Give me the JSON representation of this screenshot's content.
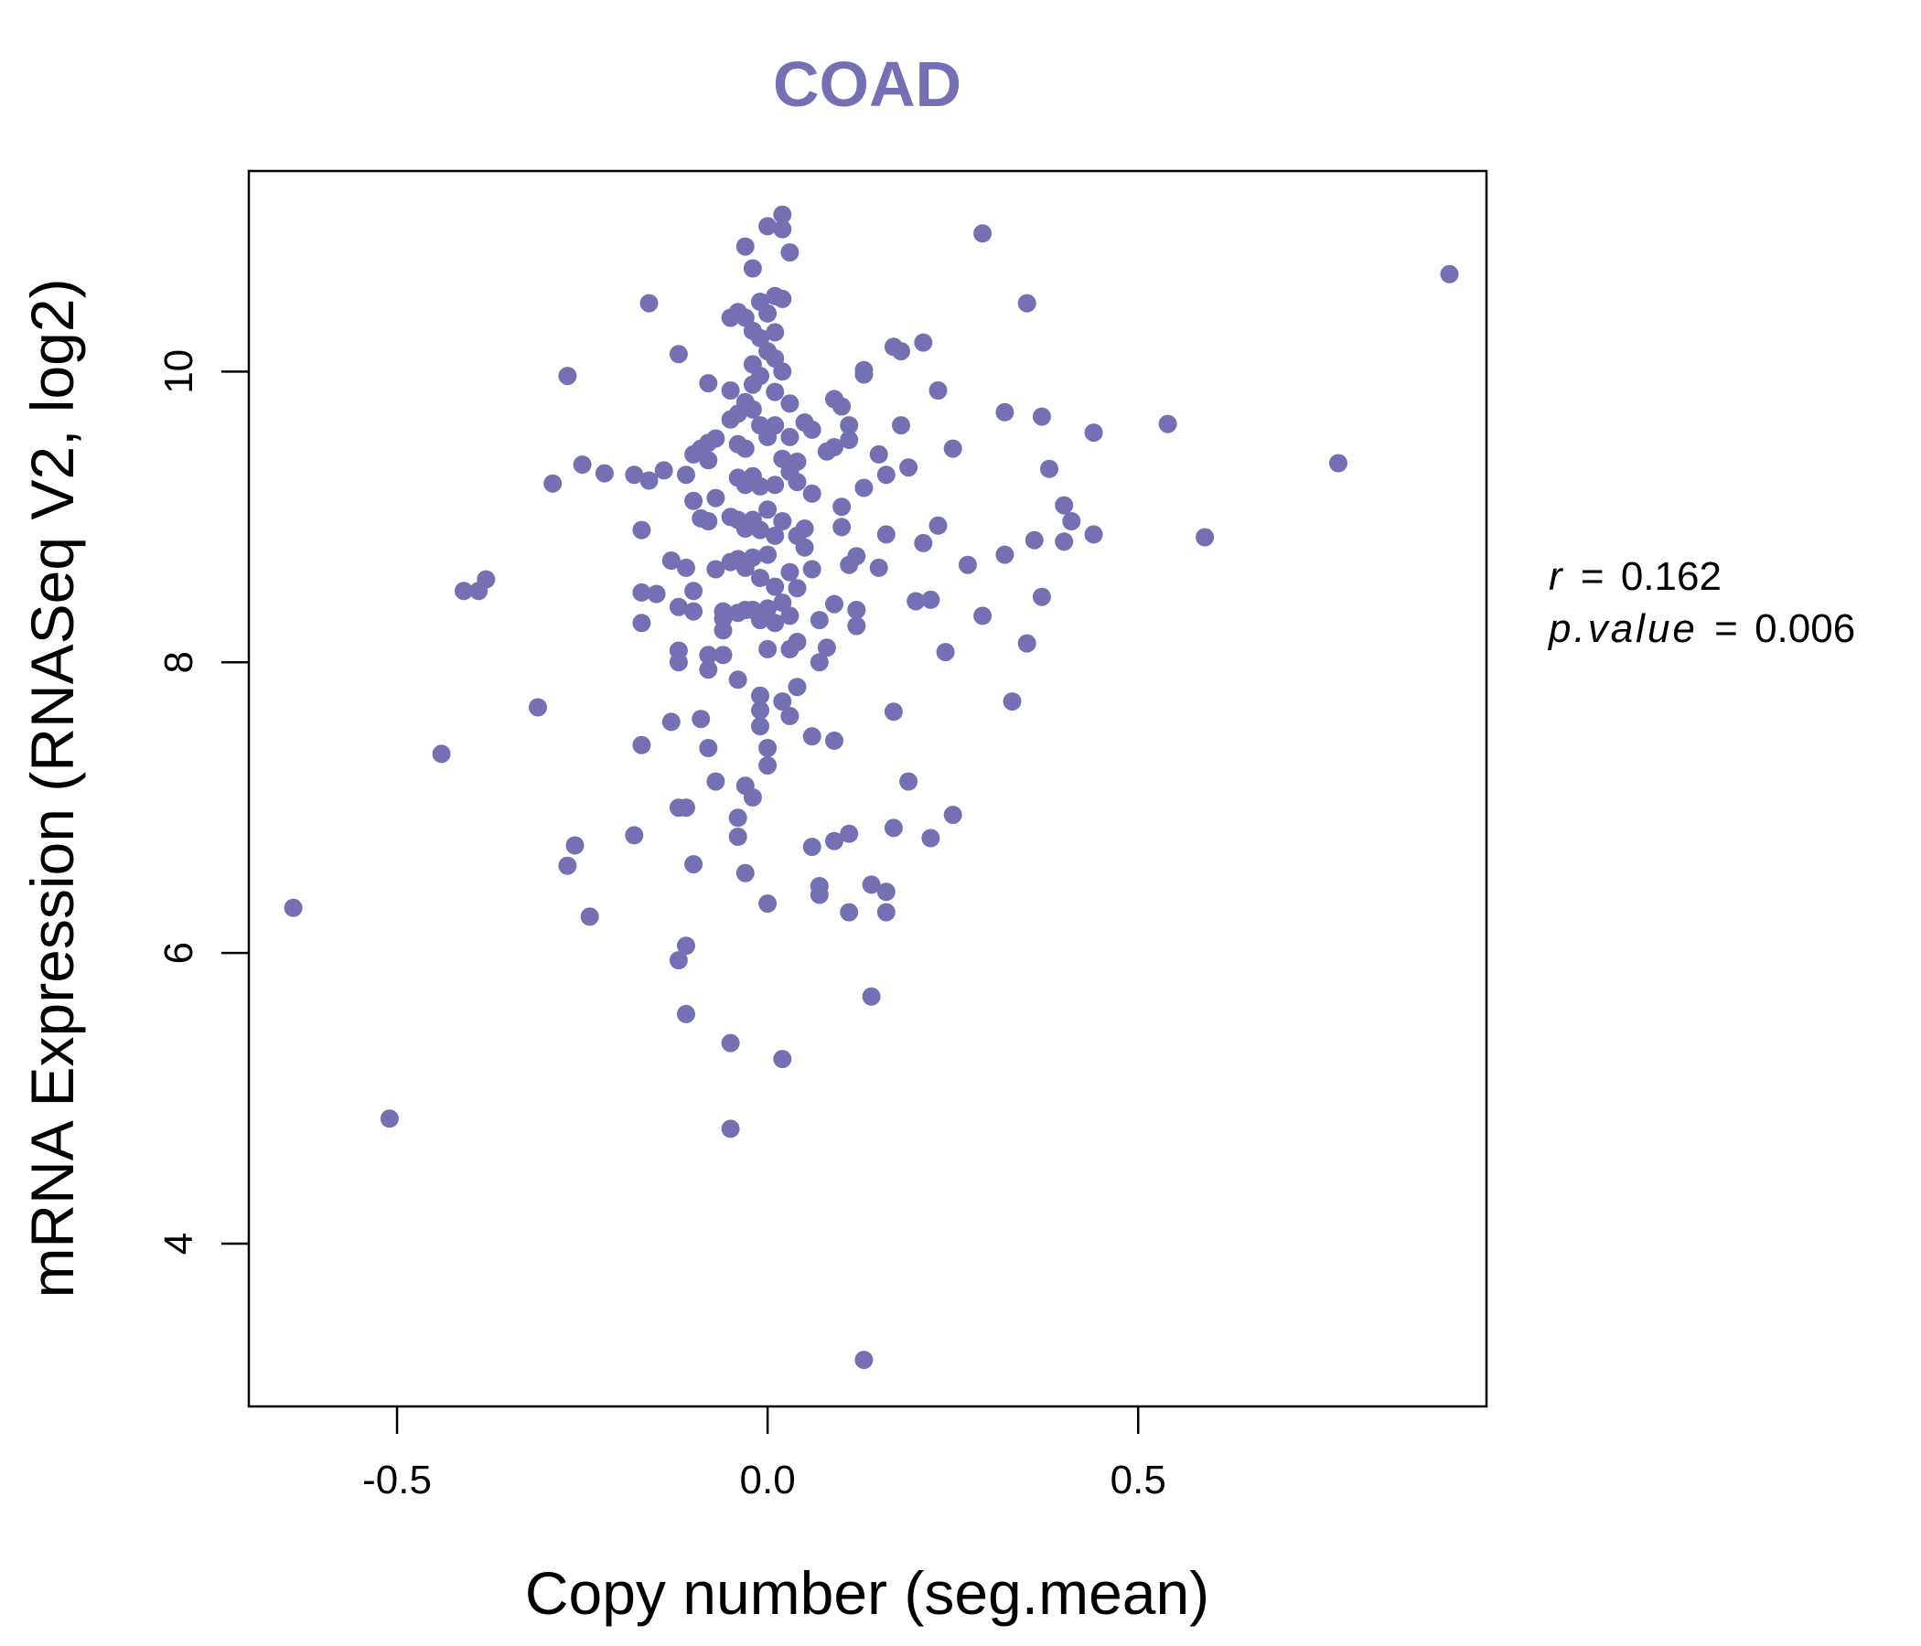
{
  "chart_data": {
    "type": "scatter",
    "title": "COAD",
    "xlabel": "Copy number (seg.mean)",
    "ylabel": "mRNA Expression (RNASeq V2, log2)",
    "xlim": [
      -0.7,
      0.97
    ],
    "ylim": [
      2.88,
      11.38
    ],
    "x_ticks": [
      -0.5,
      0.0,
      0.5
    ],
    "x_tick_labels": [
      "-0.5",
      "0.0",
      "0.5"
    ],
    "y_ticks": [
      4,
      6,
      8,
      10
    ],
    "y_tick_labels": [
      "4",
      "6",
      "8",
      "10"
    ],
    "point_color": "#7570b3",
    "title_color": "#7570b3",
    "grid": false,
    "legend": "none",
    "stats": {
      "r_label": "r",
      "r_value": "0.162",
      "p_label": "p.value",
      "p_value": "0.006"
    },
    "points": [
      [
        0.92,
        10.67
      ],
      [
        0.29,
        10.95
      ],
      [
        0.35,
        10.47
      ],
      [
        0.77,
        9.37
      ],
      [
        0.54,
        9.64
      ],
      [
        0.59,
        8.86
      ],
      [
        0.44,
        9.58
      ],
      [
        0.44,
        8.88
      ],
      [
        0.41,
        8.97
      ],
      [
        0.4,
        9.08
      ],
      [
        0.4,
        8.83
      ],
      [
        0.38,
        9.33
      ],
      [
        0.37,
        9.69
      ],
      [
        0.37,
        8.45
      ],
      [
        0.36,
        8.84
      ],
      [
        0.35,
        8.13
      ],
      [
        0.32,
        9.72
      ],
      [
        0.32,
        8.74
      ],
      [
        0.33,
        7.73
      ],
      [
        0.29,
        8.32
      ],
      [
        0.27,
        8.67
      ],
      [
        0.25,
        9.47
      ],
      [
        0.24,
        8.07
      ],
      [
        0.25,
        6.95
      ],
      [
        0.23,
        9.87
      ],
      [
        0.23,
        8.94
      ],
      [
        0.22,
        8.43
      ],
      [
        0.22,
        6.79
      ],
      [
        0.21,
        10.2
      ],
      [
        0.21,
        8.82
      ],
      [
        0.2,
        8.42
      ],
      [
        0.19,
        9.34
      ],
      [
        0.19,
        7.18
      ],
      [
        0.18,
        10.14
      ],
      [
        0.18,
        9.63
      ],
      [
        0.17,
        10.17
      ],
      [
        0.17,
        7.66
      ],
      [
        0.17,
        6.86
      ],
      [
        0.16,
        9.29
      ],
      [
        0.16,
        8.88
      ],
      [
        0.15,
        8.65
      ],
      [
        0.15,
        9.43
      ],
      [
        0.14,
        6.47
      ],
      [
        0.14,
        5.7
      ],
      [
        0.16,
        6.42
      ],
      [
        0.16,
        6.28
      ],
      [
        0.13,
        10.01
      ],
      [
        0.13,
        9.98
      ],
      [
        0.13,
        9.2
      ],
      [
        0.12,
        8.73
      ],
      [
        0.12,
        8.36
      ],
      [
        0.12,
        8.25
      ],
      [
        0.11,
        9.63
      ],
      [
        0.11,
        9.53
      ],
      [
        0.11,
        8.67
      ],
      [
        0.11,
        6.82
      ],
      [
        0.11,
        6.28
      ],
      [
        0.1,
        9.76
      ],
      [
        0.1,
        9.07
      ],
      [
        0.1,
        8.93
      ],
      [
        0.09,
        9.81
      ],
      [
        0.09,
        9.48
      ],
      [
        0.09,
        8.4
      ],
      [
        0.09,
        7.46
      ],
      [
        0.09,
        6.77
      ],
      [
        0.08,
        9.45
      ],
      [
        0.08,
        8.1
      ],
      [
        0.07,
        8.29
      ],
      [
        0.07,
        8.0
      ],
      [
        0.07,
        6.46
      ],
      [
        0.07,
        6.4
      ],
      [
        0.06,
        9.6
      ],
      [
        0.06,
        9.16
      ],
      [
        0.06,
        8.64
      ],
      [
        0.06,
        7.49
      ],
      [
        0.06,
        6.73
      ],
      [
        0.05,
        9.65
      ],
      [
        0.05,
        8.92
      ],
      [
        0.05,
        8.79
      ],
      [
        0.04,
        9.38
      ],
      [
        0.04,
        9.24
      ],
      [
        0.04,
        8.87
      ],
      [
        0.04,
        8.51
      ],
      [
        0.04,
        8.14
      ],
      [
        0.04,
        7.83
      ],
      [
        0.03,
        10.82
      ],
      [
        0.03,
        9.78
      ],
      [
        0.03,
        9.55
      ],
      [
        0.03,
        9.31
      ],
      [
        0.03,
        8.62
      ],
      [
        0.03,
        8.32
      ],
      [
        0.03,
        8.09
      ],
      [
        0.03,
        7.63
      ],
      [
        0.02,
        11.08
      ],
      [
        0.02,
        10.98
      ],
      [
        0.02,
        10.5
      ],
      [
        0.02,
        10.0
      ],
      [
        0.02,
        9.4
      ],
      [
        0.02,
        8.97
      ],
      [
        0.02,
        8.41
      ],
      [
        0.02,
        7.73
      ],
      [
        0.02,
        5.27
      ],
      [
        0.01,
        10.52
      ],
      [
        0.01,
        10.27
      ],
      [
        0.01,
        10.09
      ],
      [
        0.01,
        9.86
      ],
      [
        0.01,
        9.63
      ],
      [
        0.01,
        9.22
      ],
      [
        0.01,
        8.87
      ],
      [
        0.01,
        8.52
      ],
      [
        0.01,
        8.27
      ],
      [
        0.0,
        11.0
      ],
      [
        0.0,
        10.4
      ],
      [
        0.0,
        10.14
      ],
      [
        0.0,
        9.55
      ],
      [
        0.0,
        9.05
      ],
      [
        0.0,
        8.74
      ],
      [
        0.0,
        8.37
      ],
      [
        0.0,
        8.09
      ],
      [
        0.0,
        7.41
      ],
      [
        0.0,
        7.29
      ],
      [
        0.0,
        6.34
      ],
      [
        -0.01,
        10.48
      ],
      [
        -0.01,
        10.23
      ],
      [
        -0.01,
        9.97
      ],
      [
        -0.01,
        9.63
      ],
      [
        -0.01,
        9.21
      ],
      [
        -0.01,
        8.91
      ],
      [
        -0.01,
        8.58
      ],
      [
        -0.01,
        8.29
      ],
      [
        -0.01,
        7.77
      ],
      [
        -0.01,
        7.67
      ],
      [
        -0.01,
        7.56
      ],
      [
        -0.02,
        10.71
      ],
      [
        -0.02,
        10.28
      ],
      [
        -0.02,
        10.05
      ],
      [
        -0.02,
        9.91
      ],
      [
        -0.02,
        9.74
      ],
      [
        -0.02,
        9.28
      ],
      [
        -0.02,
        8.98
      ],
      [
        -0.02,
        8.72
      ],
      [
        -0.02,
        8.36
      ],
      [
        -0.02,
        7.07
      ],
      [
        -0.03,
        10.86
      ],
      [
        -0.03,
        10.37
      ],
      [
        -0.03,
        9.79
      ],
      [
        -0.03,
        9.47
      ],
      [
        -0.03,
        9.22
      ],
      [
        -0.03,
        8.92
      ],
      [
        -0.03,
        8.65
      ],
      [
        -0.03,
        8.36
      ],
      [
        -0.03,
        7.15
      ],
      [
        -0.03,
        6.55
      ],
      [
        -0.04,
        10.41
      ],
      [
        -0.04,
        9.71
      ],
      [
        -0.04,
        9.5
      ],
      [
        -0.04,
        9.27
      ],
      [
        -0.04,
        8.98
      ],
      [
        -0.04,
        8.71
      ],
      [
        -0.04,
        8.34
      ],
      [
        -0.04,
        7.88
      ],
      [
        -0.04,
        6.8
      ],
      [
        -0.04,
        6.93
      ],
      [
        -0.05,
        10.37
      ],
      [
        -0.05,
        9.87
      ],
      [
        -0.05,
        9.67
      ],
      [
        -0.05,
        9.0
      ],
      [
        -0.05,
        8.69
      ],
      [
        -0.05,
        5.38
      ],
      [
        -0.05,
        4.79
      ],
      [
        -0.06,
        8.35
      ],
      [
        -0.06,
        8.3
      ],
      [
        -0.06,
        8.22
      ],
      [
        -0.06,
        8.05
      ],
      [
        -0.07,
        9.54
      ],
      [
        -0.07,
        9.13
      ],
      [
        -0.07,
        8.64
      ],
      [
        -0.07,
        7.18
      ],
      [
        -0.08,
        9.92
      ],
      [
        -0.08,
        9.51
      ],
      [
        -0.08,
        9.39
      ],
      [
        -0.08,
        8.97
      ],
      [
        -0.08,
        8.05
      ],
      [
        -0.08,
        7.95
      ],
      [
        -0.08,
        7.41
      ],
      [
        -0.09,
        9.47
      ],
      [
        -0.09,
        8.99
      ],
      [
        -0.09,
        7.61
      ],
      [
        -0.1,
        9.43
      ],
      [
        -0.1,
        9.11
      ],
      [
        -0.1,
        8.49
      ],
      [
        -0.1,
        8.35
      ],
      [
        -0.1,
        6.61
      ],
      [
        -0.11,
        9.29
      ],
      [
        -0.11,
        8.65
      ],
      [
        -0.11,
        7.0
      ],
      [
        -0.11,
        6.05
      ],
      [
        -0.11,
        5.58
      ],
      [
        -0.12,
        10.12
      ],
      [
        -0.12,
        8.38
      ],
      [
        -0.12,
        8.08
      ],
      [
        -0.12,
        8.0
      ],
      [
        -0.12,
        7.0
      ],
      [
        -0.12,
        5.95
      ],
      [
        -0.13,
        8.7
      ],
      [
        -0.13,
        7.59
      ],
      [
        -0.14,
        9.32
      ],
      [
        -0.15,
        8.47
      ],
      [
        -0.16,
        10.47
      ],
      [
        -0.16,
        9.25
      ],
      [
        -0.17,
        8.91
      ],
      [
        -0.17,
        8.48
      ],
      [
        -0.17,
        8.27
      ],
      [
        -0.17,
        7.43
      ],
      [
        -0.18,
        9.29
      ],
      [
        -0.18,
        6.81
      ],
      [
        -0.22,
        9.3
      ],
      [
        -0.24,
        6.25
      ],
      [
        -0.25,
        9.36
      ],
      [
        -0.26,
        6.74
      ],
      [
        -0.27,
        9.97
      ],
      [
        -0.27,
        6.6
      ],
      [
        -0.29,
        9.23
      ],
      [
        -0.31,
        7.69
      ],
      [
        -0.38,
        8.57
      ],
      [
        -0.39,
        8.49
      ],
      [
        -0.41,
        8.49
      ],
      [
        -0.44,
        7.37
      ],
      [
        -0.51,
        4.86
      ],
      [
        -0.64,
        6.31
      ],
      [
        0.13,
        3.2
      ]
    ]
  }
}
